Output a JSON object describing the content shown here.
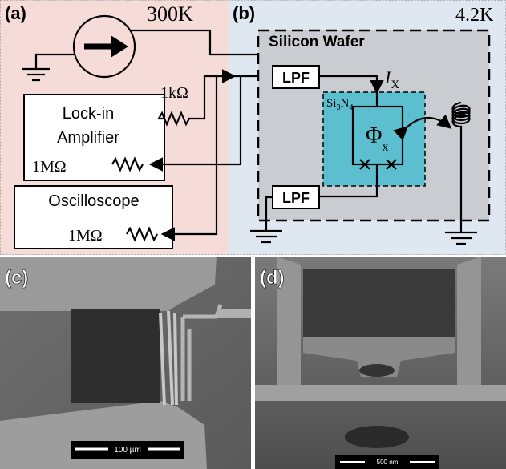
{
  "panel_a": {
    "label": "(a)",
    "temperature": "300K",
    "resistor_1k": "1kΩ",
    "lockin": [
      "Lock-in",
      "Amplifier"
    ],
    "lockin_resistor": "1MΩ",
    "oscilloscope": "Oscilloscope",
    "oscilloscope_resistor": "1MΩ"
  },
  "panel_b": {
    "label": "(b)",
    "temperature": "4.2K",
    "wafer": "Silicon Wafer",
    "filters": [
      "LPF",
      "LPF"
    ],
    "current": {
      "symbol": "I",
      "subscript": "X"
    },
    "membrane": [
      "Si",
      "3",
      "N",
      "4"
    ],
    "flux": {
      "symbol": "Φ",
      "subscript": "x"
    }
  },
  "panel_c": {
    "label": "(c)",
    "scale_bar": "100 µm"
  },
  "panel_d": {
    "label": "(d)",
    "scale_bar": "500 nm"
  }
}
